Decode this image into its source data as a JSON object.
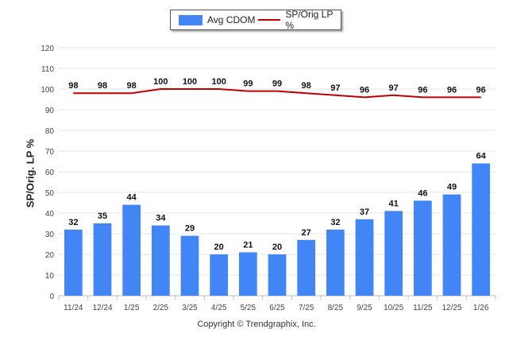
{
  "legend": {
    "bar_label": "Avg CDOM",
    "line_label": "SP/Orig LP %"
  },
  "copyright": "Copyright © Trendgraphix, Inc.",
  "chart_data": {
    "type": "bar",
    "categories": [
      "11/24",
      "12/24",
      "1/25",
      "2/25",
      "3/25",
      "4/25",
      "5/25",
      "6/25",
      "7/25",
      "8/25",
      "9/25",
      "10/25",
      "11/25",
      "12/25",
      "1/26"
    ],
    "series": [
      {
        "name": "Avg CDOM",
        "type": "bar",
        "color": "#4285f4",
        "values": [
          32,
          35,
          44,
          34,
          29,
          20,
          21,
          20,
          27,
          32,
          37,
          41,
          46,
          49,
          64
        ]
      },
      {
        "name": "SP/Orig LP %",
        "type": "line",
        "color": "#c00000",
        "values": [
          98,
          98,
          98,
          100,
          100,
          100,
          99,
          99,
          98,
          97,
          96,
          97,
          96,
          96,
          96
        ]
      }
    ],
    "title": "",
    "xlabel": "",
    "ylabel": "SP/Orig. LP %",
    "ylim": [
      0,
      120
    ],
    "yticks": [
      0,
      10,
      20,
      30,
      40,
      50,
      60,
      70,
      80,
      90,
      100,
      110,
      120
    ],
    "grid": true,
    "legend_position": "top-center",
    "data_labels": true
  }
}
